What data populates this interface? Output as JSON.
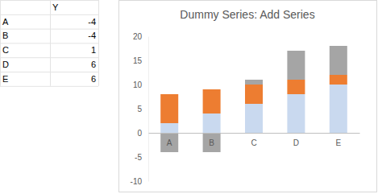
{
  "table": {
    "columns": [
      "Y"
    ],
    "rows": [
      {
        "label": "A",
        "value": -4
      },
      {
        "label": "B",
        "value": -4
      },
      {
        "label": "C",
        "value": 1
      },
      {
        "label": "D",
        "value": 6
      },
      {
        "label": "E",
        "value": 6
      }
    ]
  },
  "chart_data": {
    "type": "bar",
    "title": "Dummy Series: Add Series",
    "categories": [
      "A",
      "B",
      "C",
      "D",
      "E"
    ],
    "series": [
      {
        "color": "#c9d9ef",
        "values": [
          2,
          4,
          6,
          8,
          10
        ]
      },
      {
        "color": "#ed7d31",
        "values": [
          6,
          5,
          4,
          3,
          2
        ]
      },
      {
        "color": "#a5a5a5",
        "values": [
          -4,
          -4,
          1,
          6,
          6
        ]
      }
    ],
    "stacked": true,
    "grid": false,
    "ylim": [
      -10,
      20
    ],
    "yticks": [
      -10,
      -5,
      0,
      5,
      10,
      15,
      20
    ]
  }
}
